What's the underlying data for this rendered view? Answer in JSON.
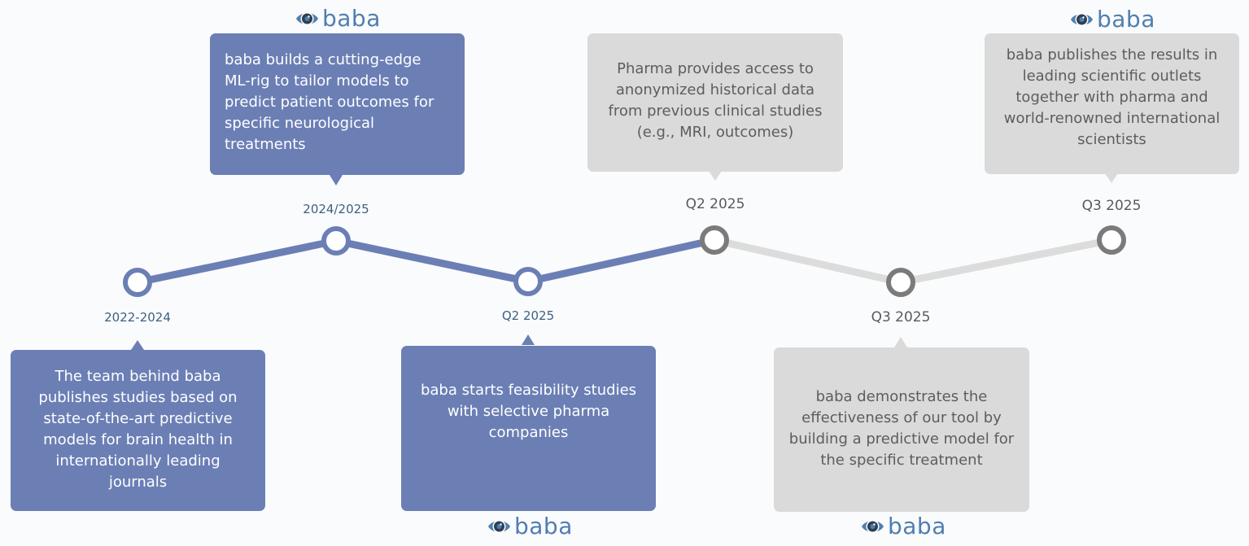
{
  "colors": {
    "blue_box": "#6b7fb5",
    "gray_box": "#dadada",
    "blue_line": "#6b7fb5",
    "gray_line": "#dcdcdc",
    "gray_circle": "#7b7b7b",
    "logo": "#4f7fb0"
  },
  "logo": {
    "word": "baba",
    "icon": "eye-icon"
  },
  "milestones": [
    {
      "label": "2022-2024",
      "text": "The team behind baba publishes studies based on state-of-the-art predictive models for brain health in internationally leading journals"
    },
    {
      "label": "2024/2025",
      "text": "baba builds a cutting-edge ML-rig to tailor models to predict patient outcomes for specific neurological treatments"
    },
    {
      "label": "Q2 2025",
      "text": "baba starts feasibility studies with selective pharma companies"
    },
    {
      "label": "Q2 2025",
      "text": "Pharma provides access to anonymized historical data from previous clinical studies (e.g., MRI, outcomes)"
    },
    {
      "label": "Q3 2025",
      "text": "baba demonstrates the effectiveness of our tool by building a predictive model for the specific treatment"
    },
    {
      "label": "Q3 2025",
      "text": "baba publishes the results in leading scientific outlets together with pharma and world-renowned international scientists"
    }
  ]
}
